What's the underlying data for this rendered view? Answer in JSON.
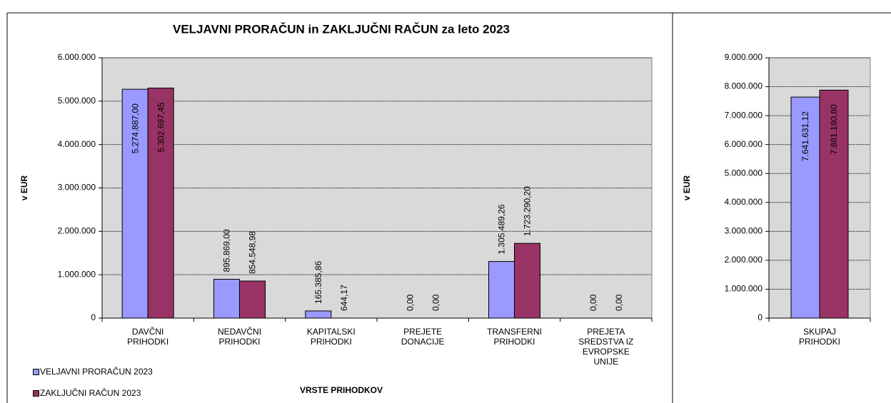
{
  "chart_data": [
    {
      "type": "bar",
      "title": "VELJAVNI PRORAČUN in ZAKLJUČNI RAČUN za leto 2023",
      "ylabel": "v EUR",
      "xlabel": "VRSTE PRIHODKOV",
      "categories": [
        "DAVČNI PRIHODKI",
        "NEDAVČNI PRIHODKI",
        "KAPITALSKI PRIHODKI",
        "PREJETE DONACIJE",
        "TRANSFERNI PRIHODKI",
        "PREJETA SREDSTVA IZ EVROPSKE UNIJE"
      ],
      "series": [
        {
          "name": "VELJAVNI PRORAČUN 2023",
          "color": "#9999ff",
          "values": [
            5274887.0,
            895869.0,
            165385.86,
            0,
            1305489.26,
            0
          ],
          "value_labels": [
            "5.274.887,00",
            "895.869,00",
            "165.385,86",
            "0,00",
            "1.305.489,26",
            "0,00"
          ]
        },
        {
          "name": "ZAKLJUČNI RAČUN 2023",
          "color": "#993366",
          "values": [
            5302697.45,
            854548.98,
            644.17,
            0,
            1723290.2,
            0
          ],
          "value_labels": [
            "5.302.697,45",
            "854.548,98",
            "644,17",
            "0,00",
            "1.723.290,20",
            "0,00"
          ]
        }
      ],
      "ylim": [
        0,
        6000000
      ],
      "yticks": [
        0,
        {
          "value": 1000000,
          "label": "1.000.000"
        },
        {
          "value": 2000000,
          "label": "2.000.000"
        },
        {
          "value": 3000000,
          "label": "3.000.000"
        },
        {
          "value": 4000000,
          "label": "4.000.000"
        },
        {
          "value": 5000000,
          "label": "5.000.000"
        },
        {
          "value": 6000000,
          "label": "6.000.000"
        }
      ],
      "grid": true,
      "legend": "bottom-left"
    },
    {
      "type": "bar",
      "ylabel": "v EUR",
      "categories": [
        "SKUPAJ PRIHODKI"
      ],
      "series": [
        {
          "color": "#9999ff",
          "values": [
            7641631.12
          ],
          "value_labels": [
            "7.641.631,12"
          ]
        },
        {
          "color": "#993366",
          "values": [
            7881180.8
          ],
          "value_labels": [
            "7.881.180,80"
          ]
        }
      ],
      "ylim": [
        0,
        9000000
      ],
      "yticks": [
        0,
        {
          "value": 1000000,
          "label": "1.000.000"
        },
        {
          "value": 2000000,
          "label": "2.000.000"
        },
        {
          "value": 3000000,
          "label": "3.000.000"
        },
        {
          "value": 4000000,
          "label": "4.000.000"
        },
        {
          "value": 5000000,
          "label": "5.000.000"
        },
        {
          "value": 6000000,
          "label": "6.000.000"
        },
        {
          "value": 7000000,
          "label": "7.000.000"
        },
        {
          "value": 8000000,
          "label": "8.000.000"
        },
        {
          "value": 9000000,
          "label": "9.000.000"
        }
      ],
      "grid": true
    }
  ]
}
